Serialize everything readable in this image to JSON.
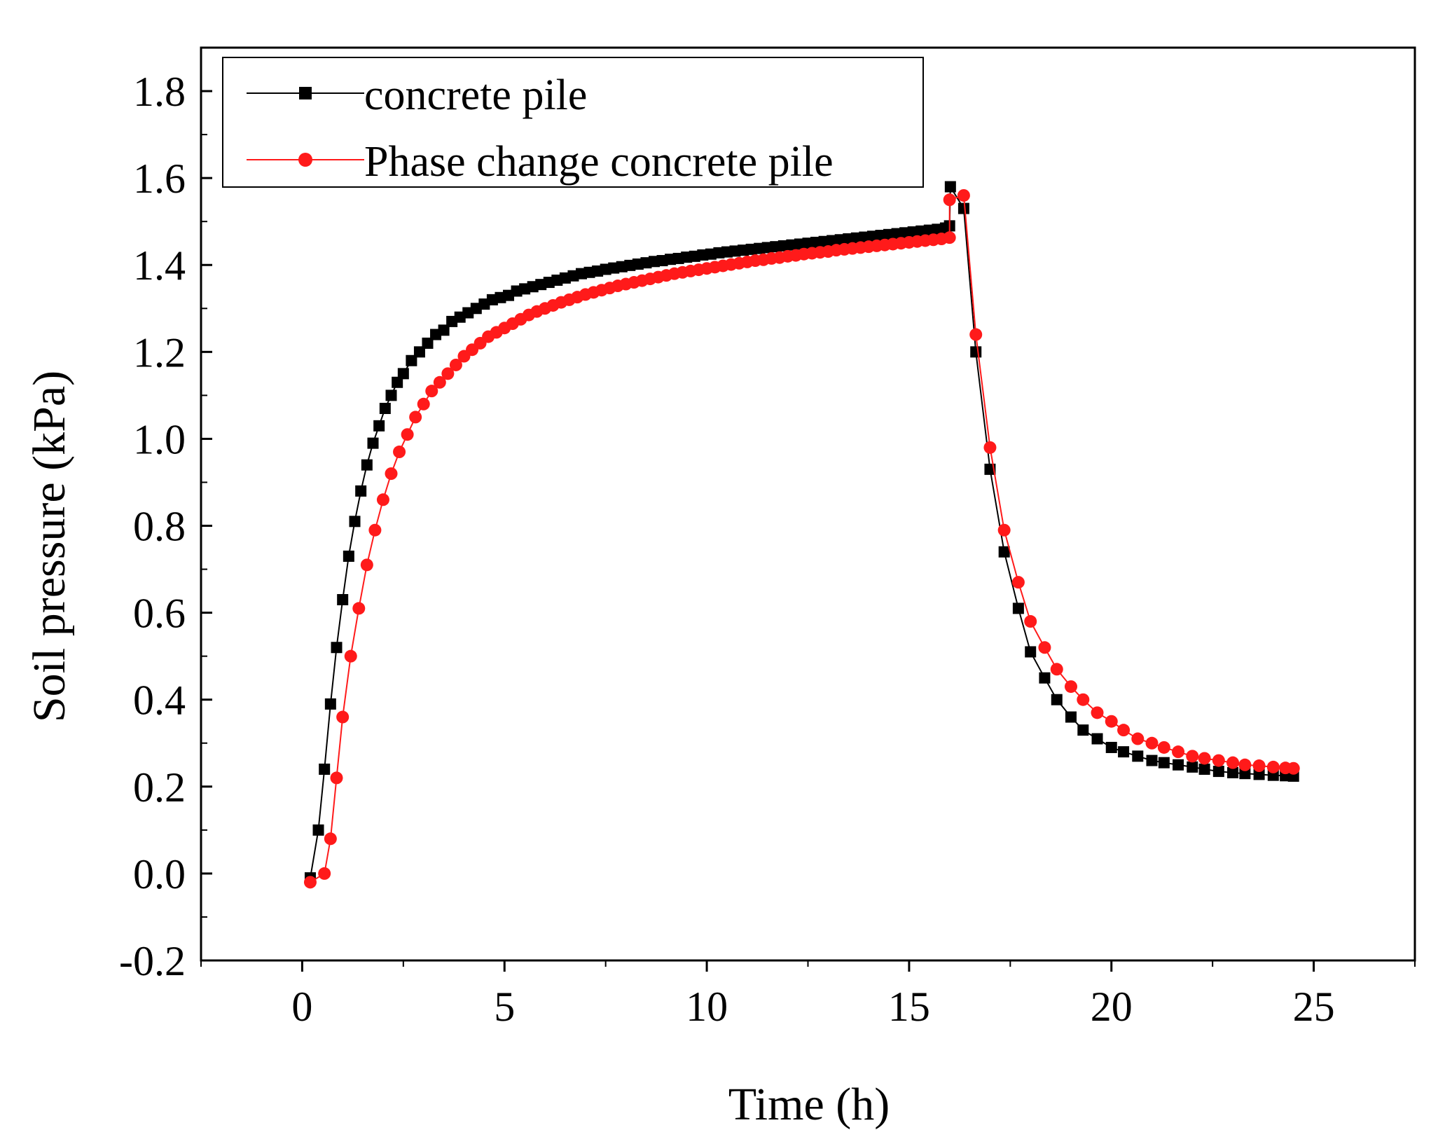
{
  "chart_data": {
    "type": "line",
    "title": "",
    "xlabel": "Time (h)",
    "ylabel": "Soil pressure (kPa)",
    "xlim": [
      -2.5,
      27.5
    ],
    "ylim": [
      -0.2,
      1.9
    ],
    "xticks": [
      0,
      5,
      10,
      15,
      20,
      25
    ],
    "xtick_labels": [
      "0",
      "5",
      "10",
      "15",
      "20",
      "25"
    ],
    "yticks": [
      -0.2,
      0.0,
      0.2,
      0.4,
      0.6,
      0.8,
      1.0,
      1.2,
      1.4,
      1.6,
      1.8
    ],
    "ytick_labels": [
      "-0.2",
      "0.0",
      "0.2",
      "0.4",
      "0.6",
      "0.8",
      "1.0",
      "1.2",
      "1.4",
      "1.6",
      "1.8"
    ],
    "grid": false,
    "legend_position": "top-left",
    "series": [
      {
        "name": "concrete pile",
        "color": "#000000",
        "marker": "square",
        "x": [
          0.2,
          0.4,
          0.55,
          0.7,
          0.85,
          1.0,
          1.15,
          1.3,
          1.45,
          1.6,
          1.75,
          1.9,
          2.05,
          2.2,
          2.35,
          2.5,
          2.7,
          2.9,
          3.1,
          3.3,
          3.5,
          3.7,
          3.9,
          4.1,
          4.3,
          4.5,
          4.7,
          4.9,
          5.1,
          5.3,
          5.5,
          5.7,
          5.9,
          6.1,
          6.3,
          6.5,
          6.7,
          6.9,
          7.1,
          7.3,
          7.5,
          7.7,
          7.9,
          8.1,
          8.3,
          8.5,
          8.7,
          8.9,
          9.1,
          9.3,
          9.5,
          9.7,
          9.9,
          10.1,
          10.3,
          10.5,
          10.7,
          10.9,
          11.1,
          11.3,
          11.5,
          11.7,
          11.9,
          12.1,
          12.3,
          12.5,
          12.7,
          12.9,
          13.1,
          13.3,
          13.5,
          13.7,
          13.9,
          14.1,
          14.3,
          14.5,
          14.7,
          14.9,
          15.1,
          15.3,
          15.5,
          15.7,
          15.9,
          16.0,
          16.02,
          16.35,
          16.65,
          17.0,
          17.35,
          17.7,
          18.0,
          18.35,
          18.65,
          19.0,
          19.3,
          19.65,
          20.0,
          20.3,
          20.65,
          21.0,
          21.3,
          21.65,
          22.0,
          22.3,
          22.65,
          23.0,
          23.3,
          23.65,
          24.0,
          24.3,
          24.5
        ],
        "y": [
          -0.01,
          0.1,
          0.24,
          0.39,
          0.52,
          0.63,
          0.73,
          0.81,
          0.88,
          0.94,
          0.99,
          1.03,
          1.07,
          1.1,
          1.13,
          1.15,
          1.18,
          1.2,
          1.22,
          1.24,
          1.25,
          1.27,
          1.28,
          1.29,
          1.3,
          1.31,
          1.32,
          1.325,
          1.33,
          1.34,
          1.345,
          1.35,
          1.355,
          1.36,
          1.365,
          1.37,
          1.375,
          1.38,
          1.383,
          1.386,
          1.39,
          1.393,
          1.396,
          1.399,
          1.402,
          1.405,
          1.408,
          1.41,
          1.413,
          1.415,
          1.418,
          1.42,
          1.423,
          1.425,
          1.428,
          1.43,
          1.432,
          1.434,
          1.436,
          1.438,
          1.44,
          1.442,
          1.444,
          1.446,
          1.448,
          1.45,
          1.452,
          1.454,
          1.456,
          1.458,
          1.46,
          1.462,
          1.464,
          1.466,
          1.468,
          1.47,
          1.472,
          1.474,
          1.476,
          1.478,
          1.48,
          1.482,
          1.485,
          1.49,
          1.58,
          1.53,
          1.2,
          0.93,
          0.74,
          0.61,
          0.51,
          0.45,
          0.4,
          0.36,
          0.33,
          0.31,
          0.29,
          0.28,
          0.27,
          0.26,
          0.255,
          0.25,
          0.245,
          0.24,
          0.235,
          0.232,
          0.23,
          0.228,
          0.226,
          0.225,
          0.224
        ]
      },
      {
        "name": "Phase change concrete pile",
        "color": "#ff1a1a",
        "marker": "circle",
        "x": [
          0.2,
          0.55,
          0.7,
          0.85,
          1.0,
          1.2,
          1.4,
          1.6,
          1.8,
          2.0,
          2.2,
          2.4,
          2.6,
          2.8,
          3.0,
          3.2,
          3.4,
          3.6,
          3.8,
          4.0,
          4.2,
          4.4,
          4.6,
          4.8,
          5.0,
          5.2,
          5.4,
          5.6,
          5.8,
          6.0,
          6.2,
          6.4,
          6.6,
          6.8,
          7.0,
          7.2,
          7.4,
          7.6,
          7.8,
          8.0,
          8.2,
          8.4,
          8.6,
          8.8,
          9.0,
          9.2,
          9.4,
          9.6,
          9.8,
          10.0,
          10.2,
          10.4,
          10.6,
          10.8,
          11.0,
          11.2,
          11.4,
          11.6,
          11.8,
          12.0,
          12.2,
          12.4,
          12.6,
          12.8,
          13.0,
          13.2,
          13.4,
          13.6,
          13.8,
          14.0,
          14.2,
          14.4,
          14.6,
          14.8,
          15.0,
          15.2,
          15.4,
          15.6,
          15.8,
          16.0,
          16.0,
          16.35,
          16.65,
          17.0,
          17.35,
          17.7,
          18.0,
          18.35,
          18.65,
          19.0,
          19.3,
          19.65,
          20.0,
          20.3,
          20.65,
          21.0,
          21.3,
          21.65,
          22.0,
          22.3,
          22.65,
          23.0,
          23.3,
          23.65,
          24.0,
          24.3,
          24.5
        ],
        "y": [
          -0.02,
          0.0,
          0.08,
          0.22,
          0.36,
          0.5,
          0.61,
          0.71,
          0.79,
          0.86,
          0.92,
          0.97,
          1.01,
          1.05,
          1.08,
          1.11,
          1.13,
          1.15,
          1.17,
          1.19,
          1.205,
          1.22,
          1.235,
          1.245,
          1.255,
          1.265,
          1.275,
          1.285,
          1.293,
          1.3,
          1.307,
          1.314,
          1.32,
          1.326,
          1.332,
          1.337,
          1.342,
          1.347,
          1.352,
          1.356,
          1.36,
          1.364,
          1.368,
          1.372,
          1.376,
          1.38,
          1.383,
          1.386,
          1.389,
          1.392,
          1.395,
          1.398,
          1.401,
          1.404,
          1.407,
          1.41,
          1.412,
          1.415,
          1.417,
          1.42,
          1.422,
          1.425,
          1.427,
          1.429,
          1.431,
          1.434,
          1.436,
          1.438,
          1.44,
          1.442,
          1.444,
          1.446,
          1.448,
          1.45,
          1.452,
          1.454,
          1.456,
          1.458,
          1.46,
          1.463,
          1.55,
          1.56,
          1.24,
          0.98,
          0.79,
          0.67,
          0.58,
          0.52,
          0.47,
          0.43,
          0.4,
          0.37,
          0.35,
          0.33,
          0.31,
          0.3,
          0.29,
          0.28,
          0.27,
          0.265,
          0.26,
          0.255,
          0.25,
          0.248,
          0.245,
          0.243,
          0.242
        ]
      }
    ]
  }
}
